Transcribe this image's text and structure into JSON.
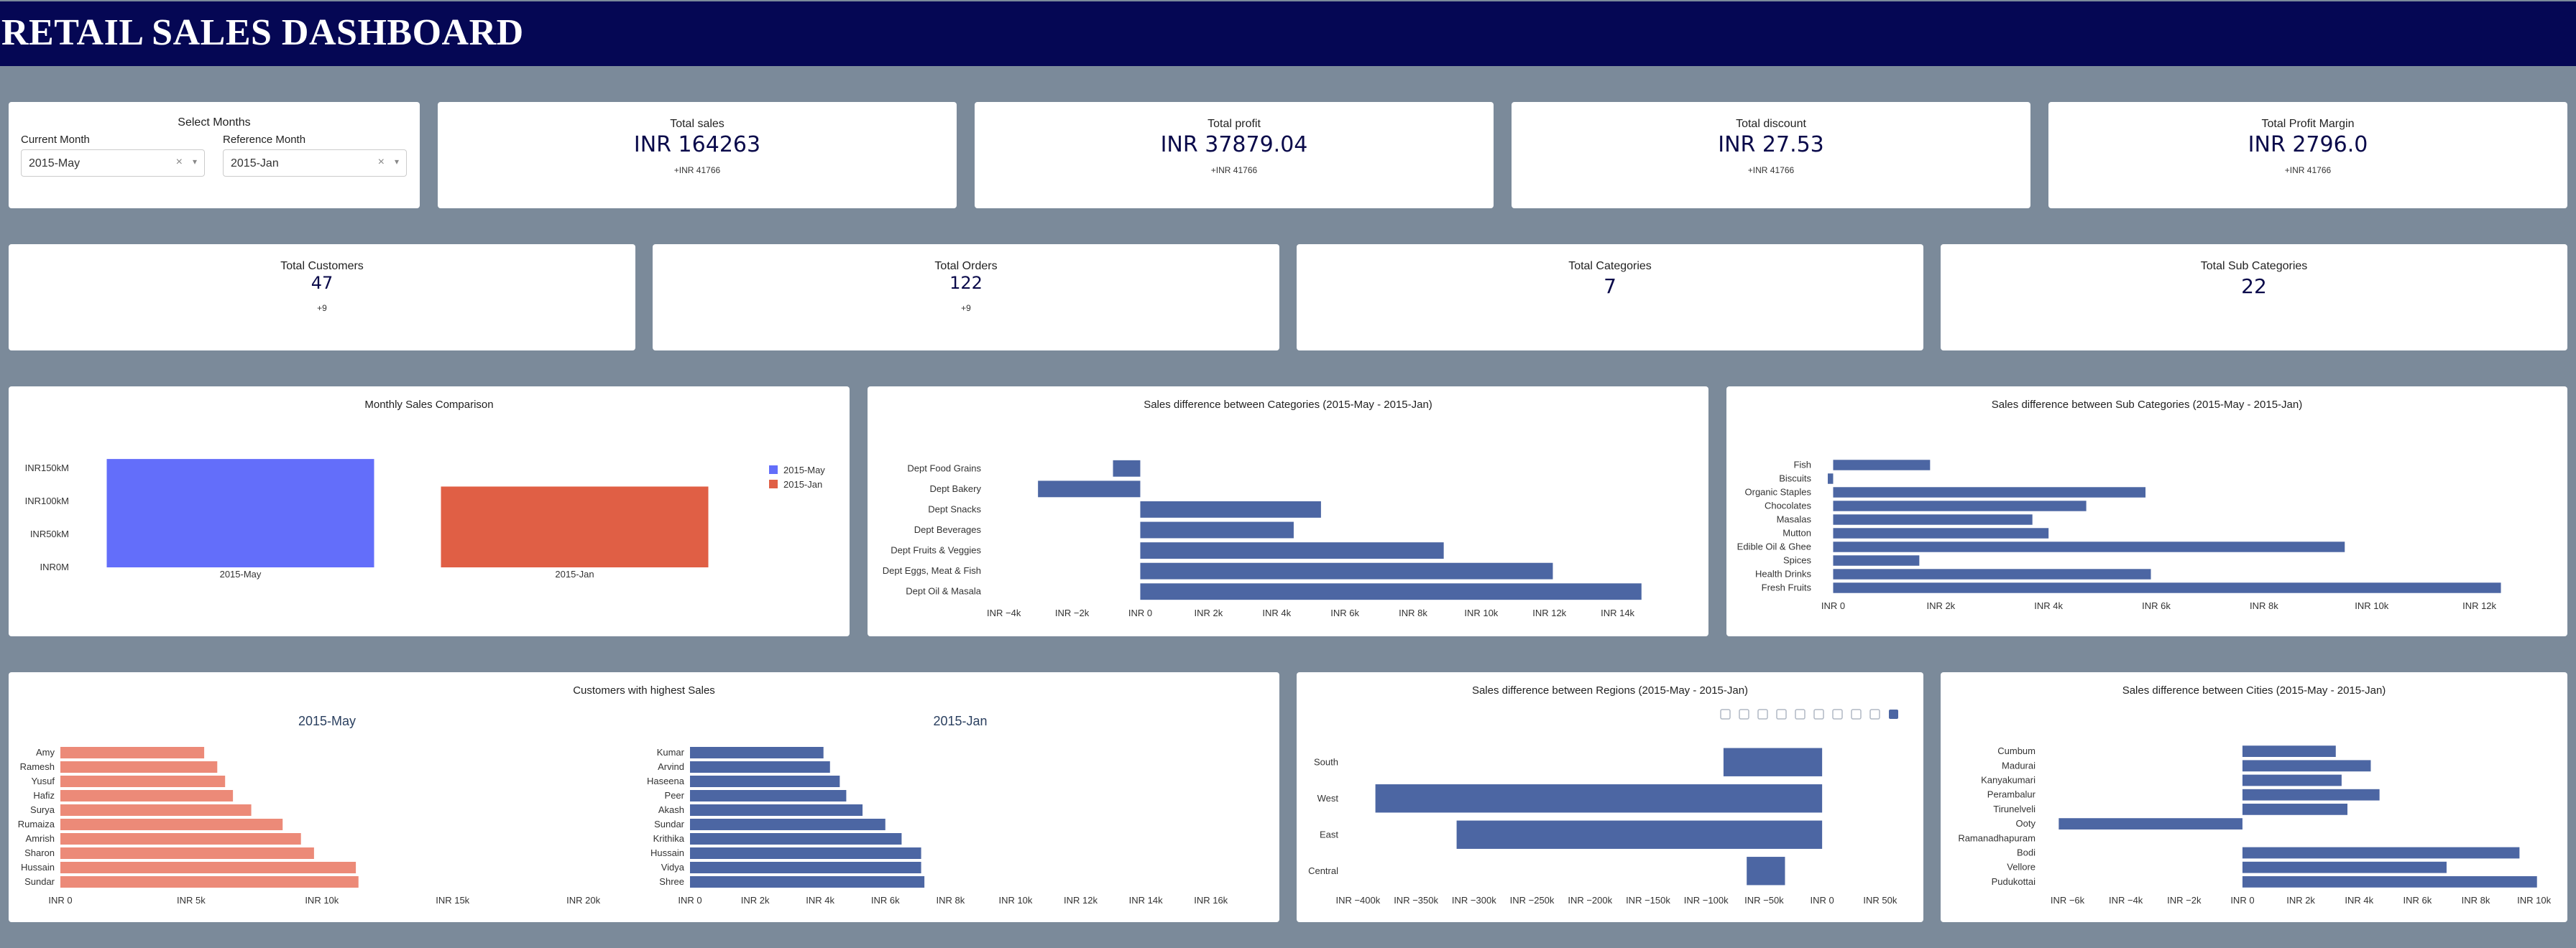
{
  "header": {
    "title": "RETAIL SALES DASHBOARD"
  },
  "selector": {
    "title": "Select Months",
    "current_label": "Current Month",
    "current_value": "2015-May",
    "reference_label": "Reference Month",
    "reference_value": "2015-Jan",
    "clear_glyph": "×",
    "caret_glyph": "▾"
  },
  "kpis_top": [
    {
      "title": "Total sales",
      "value": "INR 164263",
      "delta": "+INR 41766"
    },
    {
      "title": "Total profit",
      "value": "INR 37879.04",
      "delta": "+INR 41766"
    },
    {
      "title": "Total discount",
      "value": "INR 27.53",
      "delta": "+INR 41766"
    },
    {
      "title": "Total Profit Margin",
      "value": "INR 2796.0",
      "delta": "+INR 41766"
    }
  ],
  "kpis_bottom": [
    {
      "title": "Total Customers",
      "value": "47",
      "delta": "+9"
    },
    {
      "title": "Total Orders",
      "value": "122",
      "delta": "+9"
    },
    {
      "title": "Total Categories",
      "value": "7",
      "delta": ""
    },
    {
      "title": "Total Sub Categories",
      "value": "22",
      "delta": ""
    }
  ],
  "colors": {
    "navy": "#050754",
    "bar_blue": "#4c66a3",
    "may": "#636efa",
    "jan": "#e05f45",
    "salmon": "#ec8a78"
  },
  "chart_data": [
    {
      "id": "monthly",
      "type": "bar",
      "title": "Monthly Sales Comparison",
      "categories": [
        "2015-May",
        "2015-Jan"
      ],
      "values": [
        164263,
        122497
      ],
      "ytick_labels": [
        "INR0M",
        "INR50kM",
        "INR100kM",
        "INR150kM"
      ],
      "yticks": [
        0,
        50000,
        100000,
        150000
      ],
      "ylim": [
        0,
        172000
      ],
      "legend": [
        "2015-May",
        "2015-Jan"
      ],
      "legend_position": "right"
    },
    {
      "id": "categories",
      "type": "bar",
      "orientation": "horizontal",
      "title": "Sales difference between Categories (2015-May - 2015-Jan)",
      "categories": [
        "Dept Food Grains",
        "Dept Bakery",
        "Dept Snacks",
        "Dept Beverages",
        "Dept Fruits & Veggies",
        "Dept Eggs, Meat & Fish",
        "Dept Oil & Masala"
      ],
      "values": [
        -800,
        -3000,
        5300,
        4500,
        8900,
        12100,
        14700
      ],
      "xlim": [
        -4500,
        15400
      ],
      "xticks": [
        -4000,
        -2000,
        0,
        2000,
        4000,
        6000,
        8000,
        10000,
        12000,
        14000
      ],
      "xtick_labels": [
        "INR −4k",
        "INR −2k",
        "INR 0",
        "INR 2k",
        "INR 4k",
        "INR 6k",
        "INR 8k",
        "INR 10k",
        "INR 12k",
        "INR 14k"
      ]
    },
    {
      "id": "subcategories",
      "type": "bar",
      "orientation": "horizontal",
      "title": "Sales difference between Sub Categories (2015-May - 2015-Jan)",
      "categories": [
        "Fish",
        "Biscuits",
        "Organic Staples",
        "Chocolates",
        "Masalas",
        "Mutton",
        "Edible Oil & Ghee",
        "Spices",
        "Health Drinks",
        "Fresh Fruits"
      ],
      "values": [
        1800,
        -100,
        5800,
        4700,
        3700,
        4000,
        9500,
        1600,
        5900,
        12400
      ],
      "xlim": [
        -300,
        12900
      ],
      "xticks": [
        0,
        2000,
        4000,
        6000,
        8000,
        10000,
        12000
      ],
      "xtick_labels": [
        "INR 0",
        "INR 2k",
        "INR 4k",
        "INR 6k",
        "INR 8k",
        "INR 10k",
        "INR 12k"
      ]
    },
    {
      "id": "customers",
      "type": "bar",
      "orientation": "horizontal",
      "title": "Customers with highest Sales",
      "subplots": [
        {
          "subtitle": "2015-May",
          "categories": [
            "Amy",
            "Ramesh",
            "Yusuf",
            "Hafiz",
            "Surya",
            "Rumaiza",
            "Amrish",
            "Sharon",
            "Hussain",
            "Sundar"
          ],
          "values": [
            5500,
            6000,
            6300,
            6600,
            7300,
            8500,
            9200,
            9700,
            11300,
            11400
          ],
          "xtick_labels": [
            "INR 0",
            "INR 5k",
            "INR 10k",
            "INR 15k",
            "INR 20k"
          ],
          "xticks": [
            0,
            5000,
            10000,
            15000,
            20000
          ],
          "xlim": [
            0,
            21000
          ]
        },
        {
          "subtitle": "2015-Jan",
          "categories": [
            "Kumar",
            "Arvind",
            "Haseena",
            "Peer",
            "Akash",
            "Sundar",
            "Krithika",
            "Hussain",
            "Vidya",
            "Shree"
          ],
          "values": [
            4100,
            4300,
            4600,
            4800,
            5300,
            6000,
            6500,
            7100,
            7100,
            7200
          ],
          "xtick_labels": [
            "INR 0",
            "INR 2k",
            "INR 4k",
            "INR 6k",
            "INR 8k",
            "INR 10k",
            "INR 12k",
            "INR 14k",
            "INR 16k"
          ],
          "xticks": [
            0,
            2000,
            4000,
            6000,
            8000,
            10000,
            12000,
            14000,
            16000
          ],
          "xlim": [
            0,
            17000
          ]
        }
      ]
    },
    {
      "id": "regions",
      "type": "bar",
      "orientation": "horizontal",
      "title": "Sales difference between Regions (2015-May - 2015-Jan)",
      "categories": [
        "South",
        "West",
        "East",
        "Central"
      ],
      "values": [
        -85000,
        -385000,
        -315000,
        33000
      ],
      "left_start": [
        0,
        0,
        0,
        -65000
      ],
      "xlim": [
        -412000,
        60000
      ],
      "xticks": [
        -400000,
        -350000,
        -300000,
        -250000,
        -200000,
        -150000,
        -100000,
        -50000,
        0,
        50000
      ],
      "xtick_labels": [
        "INR −400k",
        "INR −350k",
        "INR −300k",
        "INR −250k",
        "INR −200k",
        "INR −150k",
        "INR −100k",
        "INR −50k",
        "INR 0",
        "INR 50k"
      ]
    },
    {
      "id": "cities",
      "type": "bar",
      "orientation": "horizontal",
      "title": "Sales difference between Cities (2015-May - 2015-Jan)",
      "categories": [
        "Cumbum",
        "Madurai",
        "Kanyakumari",
        "Perambalur",
        "Tirunelveli",
        "Ooty",
        "Ramanadhapuram",
        "Bodi",
        "Vellore",
        "Pudukottai"
      ],
      "values": [
        3200,
        4400,
        3400,
        4700,
        3600,
        -6300,
        0,
        9500,
        7000,
        10100
      ],
      "xlim": [
        -6900,
        10600
      ],
      "xticks": [
        -6000,
        -4000,
        -2000,
        0,
        2000,
        4000,
        6000,
        8000,
        10000
      ],
      "xtick_labels": [
        "INR −6k",
        "INR −4k",
        "INR −2k",
        "INR 0",
        "INR 2k",
        "INR 4k",
        "INR 6k",
        "INR 8k",
        "INR 10k"
      ]
    }
  ]
}
